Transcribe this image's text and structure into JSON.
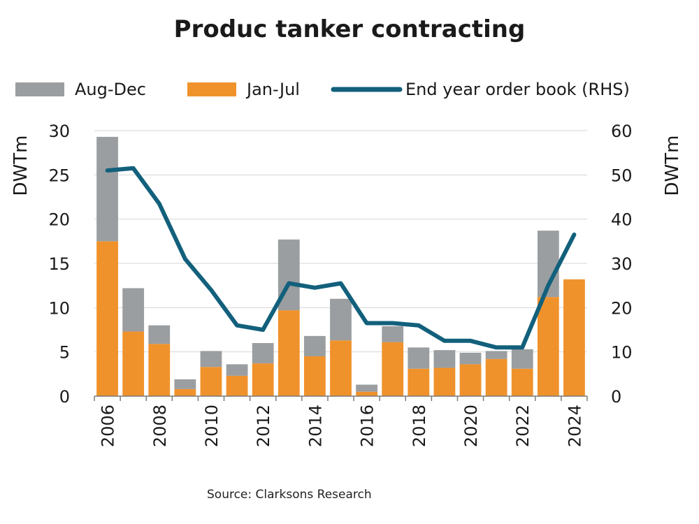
{
  "chart_data": {
    "type": "bar",
    "title": "Produc tanker contracting",
    "ylabel": "DWTm",
    "y2label": "DWTm",
    "ylim": [
      0,
      30
    ],
    "y2lim": [
      0,
      60
    ],
    "yticks": [
      "0",
      "5",
      "10",
      "15",
      "20",
      "25",
      "30"
    ],
    "y2ticks": [
      "0",
      "10",
      "20",
      "30",
      "40",
      "50",
      "60"
    ],
    "xtick_labels": [
      "2006",
      "2008",
      "2010",
      "2012",
      "2014",
      "2016",
      "2018",
      "2020",
      "2022",
      "2024"
    ],
    "categories": [
      "2006",
      "2007",
      "2008",
      "2009",
      "2010",
      "2011",
      "2012",
      "2013",
      "2014",
      "2015",
      "2016",
      "2017",
      "2018",
      "2019",
      "2020",
      "2021",
      "2022",
      "2023",
      "2024"
    ],
    "series": [
      {
        "name": "Jan-Jul",
        "type": "bar",
        "stack": "contracting",
        "color": "#f0922b",
        "values": [
          17.5,
          7.3,
          5.9,
          0.8,
          3.3,
          2.3,
          3.7,
          9.7,
          4.5,
          6.3,
          0.5,
          6.1,
          3.1,
          3.2,
          3.6,
          4.2,
          3.1,
          11.2,
          13.2
        ]
      },
      {
        "name": "Aug-Dec",
        "type": "bar",
        "stack": "contracting",
        "color": "#9a9ea0",
        "values": [
          11.8,
          4.9,
          2.1,
          1.1,
          1.8,
          1.3,
          2.3,
          8.0,
          2.3,
          4.7,
          0.8,
          1.8,
          2.4,
          2.0,
          1.3,
          0.9,
          2.2,
          7.5,
          0.0
        ]
      },
      {
        "name": "End year order book (RHS)",
        "type": "line",
        "axis": "right",
        "color": "#12607c",
        "values": [
          51,
          51.5,
          43.5,
          31,
          24,
          16,
          15,
          25.5,
          24.5,
          25.5,
          16.5,
          16.5,
          16,
          12.5,
          12.5,
          11,
          11,
          25,
          36.5
        ]
      }
    ],
    "grid": true,
    "legend_position": "top"
  },
  "legend": [
    {
      "label": "Aug-Dec",
      "color": "#9a9ea0",
      "kind": "box"
    },
    {
      "label": "Jan-Jul",
      "color": "#f0922b",
      "kind": "box"
    },
    {
      "label": "End year order book (RHS)",
      "color": "#12607c",
      "kind": "line"
    }
  ],
  "source": "Source: Clarksons Research"
}
